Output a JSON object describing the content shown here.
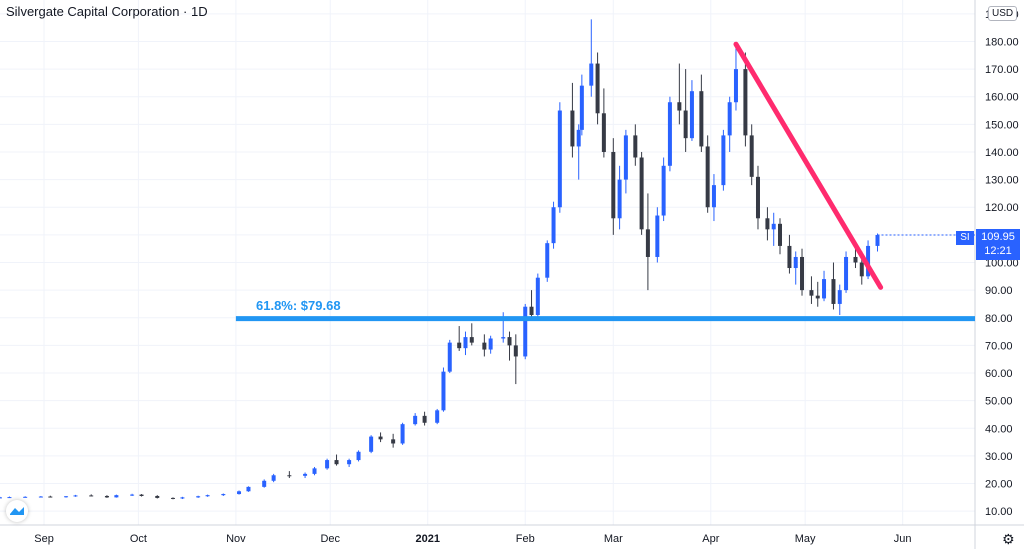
{
  "header": {
    "title": "Silvergate Capital Corporation · 1D",
    "currency": "USD"
  },
  "price_tag": {
    "symbol": "SI",
    "price": "109.95",
    "countdown": "12:21"
  },
  "fib_label": "61.8%: $79.68",
  "colors": {
    "up": "#2962ff",
    "down": "#363a45",
    "fib_line": "#2196f3",
    "trendline": "#ff2b6e",
    "grid": "#f0f3fa",
    "axis_text": "#131722"
  },
  "icons": {
    "logo": "tradingview-logo-icon",
    "settings": "gear-icon"
  },
  "chart_data": {
    "type": "candlestick",
    "title": "Silvergate Capital Corporation · 1D",
    "y_ticks": [
      10,
      20,
      30,
      40,
      50,
      60,
      70,
      80,
      90,
      100,
      110,
      120,
      130,
      140,
      150,
      160,
      170,
      180,
      190
    ],
    "ylim": [
      5,
      195
    ],
    "x_ticks": [
      "Sep",
      "Oct",
      "Nov",
      "Dec",
      "2021",
      "Feb",
      "Mar",
      "Apr",
      "May",
      "Jun"
    ],
    "x_range": [
      "2020-08-18",
      "2021-06-24"
    ],
    "x_tick_dates": [
      "2020-09-01",
      "2020-10-01",
      "2020-11-01",
      "2020-12-01",
      "2021-01-01",
      "2021-02-01",
      "2021-03-01",
      "2021-04-01",
      "2021-05-01",
      "2021-06-01"
    ],
    "horizontal_line": {
      "label": "61.8%: $79.68",
      "value": 79.68,
      "from": "2020-11-01",
      "to": "2021-06-24"
    },
    "trendline": {
      "from": [
        "2021-04-09",
        179
      ],
      "to": [
        "2021-05-25",
        91
      ]
    },
    "grid": true,
    "candles": [
      [
        "2020-08-18",
        14.9,
        15.2,
        14.7,
        15.0
      ],
      [
        "2020-08-21",
        15.0,
        15.3,
        14.8,
        15.1
      ],
      [
        "2020-08-26",
        15.1,
        15.4,
        14.9,
        15.2
      ],
      [
        "2020-08-31",
        15.2,
        15.5,
        15.0,
        15.3
      ],
      [
        "2020-09-03",
        15.3,
        15.6,
        15.0,
        15.2
      ],
      [
        "2020-09-08",
        15.2,
        15.5,
        14.9,
        15.4
      ],
      [
        "2020-09-11",
        15.4,
        15.9,
        15.2,
        15.7
      ],
      [
        "2020-09-16",
        15.7,
        16.1,
        15.4,
        15.5
      ],
      [
        "2020-09-21",
        15.5,
        15.8,
        14.8,
        15.0
      ],
      [
        "2020-09-24",
        15.0,
        16.0,
        14.9,
        15.8
      ],
      [
        "2020-09-29",
        15.8,
        16.3,
        15.5,
        16.0
      ],
      [
        "2020-10-02",
        16.0,
        16.2,
        15.3,
        15.5
      ],
      [
        "2020-10-07",
        15.5,
        15.8,
        14.6,
        14.8
      ],
      [
        "2020-10-12",
        14.8,
        15.0,
        14.3,
        14.6
      ],
      [
        "2020-10-15",
        14.6,
        15.2,
        14.4,
        15.0
      ],
      [
        "2020-10-20",
        15.0,
        15.6,
        14.8,
        15.4
      ],
      [
        "2020-10-23",
        15.4,
        16.0,
        15.2,
        15.8
      ],
      [
        "2020-10-28",
        15.8,
        16.4,
        15.5,
        16.2
      ],
      [
        "2020-11-02",
        16.2,
        17.5,
        16.0,
        17.2
      ],
      [
        "2020-11-05",
        17.2,
        19.0,
        17.0,
        18.8
      ],
      [
        "2020-11-10",
        18.8,
        21.5,
        18.5,
        21.0
      ],
      [
        "2020-11-13",
        21.0,
        23.5,
        20.5,
        23.0
      ],
      [
        "2020-11-18",
        23.0,
        24.5,
        22.0,
        22.8
      ],
      [
        "2020-11-23",
        22.8,
        24.0,
        22.0,
        23.5
      ],
      [
        "2020-11-26",
        23.5,
        26.0,
        23.0,
        25.5
      ],
      [
        "2020-11-30",
        25.5,
        29.0,
        25.0,
        28.5
      ],
      [
        "2020-12-03",
        28.5,
        30.5,
        26.5,
        27.0
      ],
      [
        "2020-12-07",
        27.0,
        29.0,
        26.0,
        28.5
      ],
      [
        "2020-12-10",
        28.5,
        32.0,
        28.0,
        31.5
      ],
      [
        "2020-12-14",
        31.5,
        37.5,
        31.0,
        37.0
      ],
      [
        "2020-12-17",
        37.0,
        38.5,
        35.0,
        36.0
      ],
      [
        "2020-12-21",
        36.0,
        38.0,
        33.0,
        34.5
      ],
      [
        "2020-12-24",
        34.5,
        42.0,
        34.0,
        41.5
      ],
      [
        "2020-12-28",
        41.5,
        45.5,
        41.0,
        44.5
      ],
      [
        "2020-12-31",
        44.5,
        46.0,
        41.0,
        42.0
      ],
      [
        "2021-01-04",
        42.0,
        47.0,
        41.5,
        46.5
      ],
      [
        "2021-01-06",
        46.5,
        62.0,
        46.0,
        60.5
      ],
      [
        "2021-01-08",
        60.5,
        72.0,
        60.0,
        71.0
      ],
      [
        "2021-01-11",
        71.0,
        77.0,
        68.0,
        69.0
      ],
      [
        "2021-01-13",
        69.0,
        75.0,
        66.5,
        73.0
      ],
      [
        "2021-01-15",
        73.0,
        78.0,
        70.0,
        71.0
      ],
      [
        "2021-01-19",
        71.0,
        74.0,
        66.0,
        68.5
      ],
      [
        "2021-01-21",
        68.5,
        73.5,
        67.0,
        72.5
      ],
      [
        "2021-01-25",
        72.5,
        82.0,
        71.0,
        73.0
      ],
      [
        "2021-01-27",
        73.0,
        75.0,
        64.5,
        70.0
      ],
      [
        "2021-01-29",
        70.0,
        74.0,
        56.0,
        66.0
      ],
      [
        "2021-02-01",
        66.0,
        85.0,
        65.0,
        84.0
      ],
      [
        "2021-02-03",
        84.0,
        90.0,
        79.0,
        81.0
      ],
      [
        "2021-02-05",
        81.0,
        96.0,
        80.0,
        94.5
      ],
      [
        "2021-02-08",
        94.5,
        108.0,
        93.0,
        107.0
      ],
      [
        "2021-02-10",
        107.0,
        122.0,
        105.0,
        120.0
      ],
      [
        "2021-02-12",
        120.0,
        158.0,
        118.0,
        155.0
      ],
      [
        "2021-02-16",
        155.0,
        165.0,
        138.0,
        142.0
      ],
      [
        "2021-02-18",
        142.0,
        150.0,
        130.0,
        148.0
      ],
      [
        "2021-02-19",
        148.0,
        168.0,
        146.0,
        164.0
      ],
      [
        "2021-02-22",
        164.0,
        188.0,
        160.0,
        172.0
      ],
      [
        "2021-02-24",
        172.0,
        176.0,
        150.0,
        154.0
      ],
      [
        "2021-02-26",
        154.0,
        163.0,
        138.0,
        140.0
      ],
      [
        "2021-03-01",
        140.0,
        145.0,
        110.0,
        116.0
      ],
      [
        "2021-03-03",
        116.0,
        135.0,
        112.0,
        130.0
      ],
      [
        "2021-03-05",
        130.0,
        148.0,
        125.0,
        146.0
      ],
      [
        "2021-03-08",
        146.0,
        150.0,
        135.0,
        138.0
      ],
      [
        "2021-03-10",
        138.0,
        140.0,
        110.0,
        112.0
      ],
      [
        "2021-03-12",
        112.0,
        125.0,
        90.0,
        102.0
      ],
      [
        "2021-03-15",
        102.0,
        120.0,
        100.0,
        117.0
      ],
      [
        "2021-03-17",
        117.0,
        138.0,
        115.0,
        135.0
      ],
      [
        "2021-03-19",
        135.0,
        160.0,
        133.0,
        158.0
      ],
      [
        "2021-03-22",
        158.0,
        172.0,
        150.0,
        155.0
      ],
      [
        "2021-03-24",
        155.0,
        170.0,
        140.0,
        145.0
      ],
      [
        "2021-03-26",
        145.0,
        166.0,
        144.0,
        162.0
      ],
      [
        "2021-03-29",
        162.0,
        168.0,
        140.0,
        142.0
      ],
      [
        "2021-03-31",
        142.0,
        146.0,
        118.0,
        120.0
      ],
      [
        "2021-04-02",
        120.0,
        132.0,
        115.0,
        128.0
      ],
      [
        "2021-04-05",
        128.0,
        148.0,
        126.0,
        146.0
      ],
      [
        "2021-04-07",
        146.0,
        160.0,
        140.0,
        158.0
      ],
      [
        "2021-04-09",
        158.0,
        178.0,
        155.0,
        170.0
      ],
      [
        "2021-04-12",
        170.0,
        176.0,
        142.0,
        146.0
      ],
      [
        "2021-04-14",
        146.0,
        150.0,
        128.0,
        131.0
      ],
      [
        "2021-04-16",
        131.0,
        135.0,
        112.0,
        116.0
      ],
      [
        "2021-04-19",
        116.0,
        120.0,
        108.0,
        112.0
      ],
      [
        "2021-04-21",
        112.0,
        118.0,
        106.0,
        114.0
      ],
      [
        "2021-04-23",
        114.0,
        116.0,
        103.0,
        106.0
      ],
      [
        "2021-04-26",
        106.0,
        110.0,
        96.0,
        98.0
      ],
      [
        "2021-04-28",
        98.0,
        104.0,
        92.0,
        102.0
      ],
      [
        "2021-04-30",
        102.0,
        105.0,
        88.0,
        90.0
      ],
      [
        "2021-05-03",
        90.0,
        95.0,
        85.0,
        88.0
      ],
      [
        "2021-05-05",
        88.0,
        93.0,
        84.0,
        87.0
      ],
      [
        "2021-05-07",
        87.0,
        97.0,
        86.0,
        94.0
      ],
      [
        "2021-05-10",
        94.0,
        100.0,
        83.0,
        85.0
      ],
      [
        "2021-05-12",
        85.0,
        92.0,
        81.0,
        90.0
      ],
      [
        "2021-05-14",
        90.0,
        104.0,
        89.0,
        102.0
      ],
      [
        "2021-05-17",
        102.0,
        106.0,
        98.0,
        100.0
      ],
      [
        "2021-05-19",
        100.0,
        104.0,
        92.0,
        95.0
      ],
      [
        "2021-05-21",
        95.0,
        108.0,
        94.0,
        106.0
      ],
      [
        "2021-05-24",
        106.0,
        110.5,
        104.0,
        109.95
      ]
    ]
  }
}
